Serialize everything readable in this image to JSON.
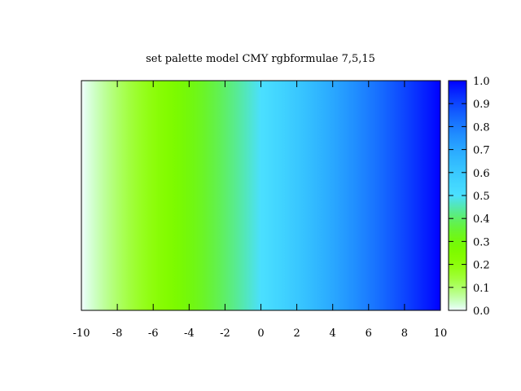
{
  "chart_data": {
    "type": "heatmap",
    "title": "set palette model CMY rgbformulae 7,5,15",
    "xlabel": "",
    "ylabel": "",
    "xlim": [
      -10,
      10
    ],
    "x_ticks": [
      "-10",
      "-8",
      "-6",
      "-4",
      "-2",
      "0",
      "2",
      "4",
      "6",
      "8",
      "10"
    ],
    "x_tick_values": [
      -10,
      -8,
      -6,
      -4,
      -2,
      0,
      2,
      4,
      6,
      8,
      10
    ],
    "colorbar": {
      "range": [
        0,
        1
      ],
      "ticks": [
        "0.0",
        "0.1",
        "0.2",
        "0.3",
        "0.4",
        "0.5",
        "0.6",
        "0.7",
        "0.8",
        "0.9",
        "1.0"
      ],
      "tick_values": [
        0,
        0.1,
        0.2,
        0.3,
        0.4,
        0.5,
        0.6,
        0.7,
        0.8,
        0.9,
        1.0
      ]
    },
    "palette": {
      "model": "CMY",
      "rgbformulae": [
        7,
        5,
        15
      ]
    },
    "mapping": "color value varies linearly with x from 0 at x=-10 to 1 at x=10",
    "grid": false
  }
}
